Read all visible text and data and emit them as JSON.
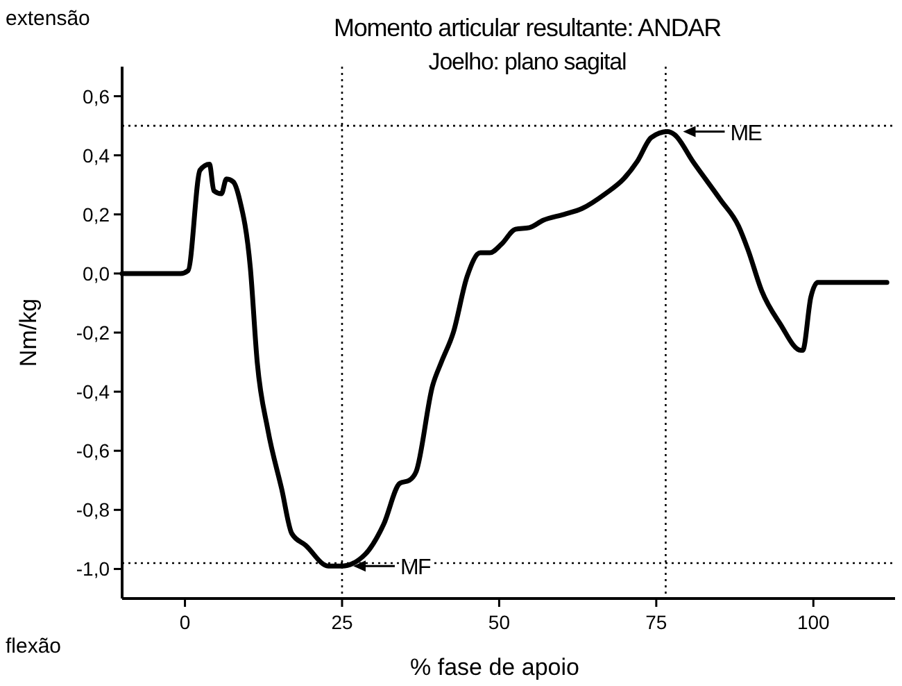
{
  "chart_data": {
    "type": "line",
    "title": "Momento articular resultante: ANDAR",
    "subtitle": "Joelho: plano sagital",
    "xlabel": "% fase de apoio",
    "ylabel": "Nm/kg",
    "annotations": [
      {
        "text": "ME",
        "x": 77.5,
        "y": 0.48
      },
      {
        "text": "MF",
        "x": 25,
        "y": -0.99
      },
      "extensão",
      "flexão"
    ],
    "series": [
      {
        "color": "#000000",
        "x": [
          -10,
          -0.7,
          0.5,
          2.4,
          3.9,
          4.6,
          5.8,
          6.6,
          7.7,
          8.7,
          10.4,
          11.5,
          13.2,
          15.4,
          17,
          19.2,
          22.8,
          25,
          28.7,
          31.6,
          34.2,
          35.7,
          36.8,
          39.4,
          40.8,
          42.7,
          44.9,
          47,
          48.5,
          50.4,
          52.6,
          54.8,
          57,
          60.3,
          63.2,
          66.9,
          69.8,
          72,
          74.2,
          76.8,
          77.9,
          80.8,
          85.2,
          88.1,
          89.6,
          91.8,
          94.7,
          98,
          98.3,
          99.6,
          100.7,
          111.7
        ],
        "values": [
          0,
          0,
          0.01,
          0.35,
          0.37,
          0.28,
          0.27,
          0.32,
          0.31,
          0.25,
          0.02,
          -0.3,
          -0.53,
          -0.73,
          -0.88,
          -0.92,
          -0.99,
          -0.99,
          -0.95,
          -0.85,
          -0.71,
          -0.7,
          -0.67,
          -0.38,
          -0.3,
          -0.2,
          -0.01,
          0.07,
          0.07,
          0.1,
          0.15,
          0.155,
          0.18,
          0.2,
          0.22,
          0.27,
          0.32,
          0.38,
          0.46,
          0.48,
          0.47,
          0.38,
          0.25,
          0.16,
          0.08,
          -0.06,
          -0.17,
          -0.26,
          -0.26,
          -0.08,
          -0.03,
          -0.03
        ]
      }
    ],
    "xlim": [
      -10,
      113
    ],
    "xticks": [
      0,
      25,
      50,
      75,
      100
    ],
    "ylim": [
      -1.1,
      0.7
    ],
    "yticks": [
      {
        "value": -1.0,
        "label": "-1,0"
      },
      {
        "value": -0.8,
        "label": "-0,8"
      },
      {
        "value": -0.6,
        "label": "-0,6"
      },
      {
        "value": -0.4,
        "label": "-0,4"
      },
      {
        "value": -0.2,
        "label": "-0,2"
      },
      {
        "value": 0,
        "label": "0,0"
      },
      {
        "value": 0.2,
        "label": "0,2"
      },
      {
        "value": 0.4,
        "label": "0,4"
      },
      {
        "value": 0.6,
        "label": "0,6"
      }
    ],
    "ref_lines": [
      {
        "axis": "y",
        "value": 0.5,
        "line_style": "dotted"
      },
      {
        "axis": "y",
        "value": -0.98,
        "line_style": "dotted"
      },
      {
        "axis": "x",
        "value": 76.5,
        "line_style": "dotted"
      },
      {
        "axis": "x",
        "value": 25,
        "line_style": "dotted"
      }
    ],
    "grid": false,
    "marker": "none",
    "line_style": "solid"
  }
}
